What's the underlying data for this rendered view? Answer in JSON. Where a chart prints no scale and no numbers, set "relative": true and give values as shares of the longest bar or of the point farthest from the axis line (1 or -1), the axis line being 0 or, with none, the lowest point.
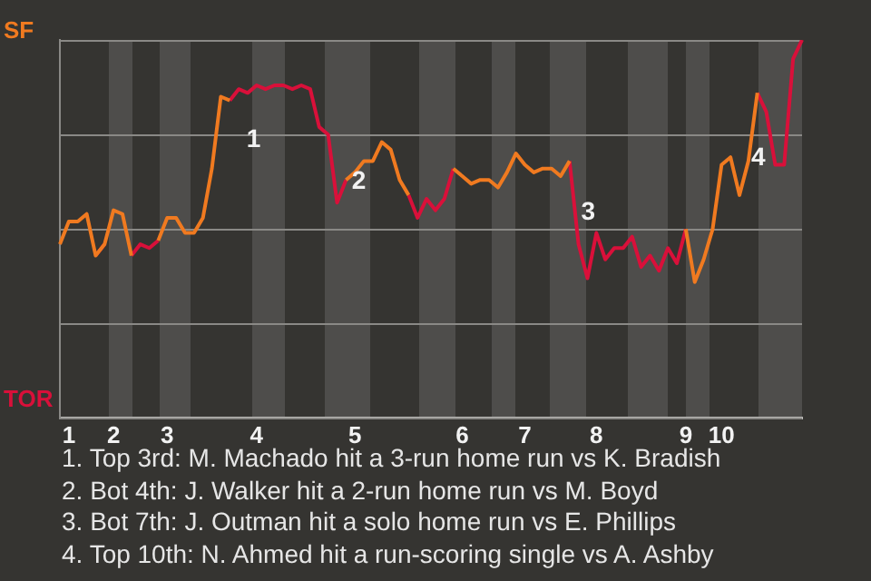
{
  "chart_data": {
    "type": "line",
    "relative": true,
    "categories": [
      null,
      "1",
      null,
      null,
      null,
      null,
      "2",
      null,
      null,
      null,
      null,
      null,
      "3",
      null,
      null,
      null,
      null,
      null,
      null,
      null,
      null,
      null,
      "4",
      null,
      null,
      null,
      null,
      null,
      null,
      null,
      null,
      null,
      null,
      "5",
      null,
      null,
      null,
      null,
      null,
      null,
      null,
      null,
      null,
      null,
      null,
      "6",
      null,
      null,
      null,
      null,
      null,
      null,
      "7",
      null,
      null,
      null,
      null,
      null,
      null,
      null,
      "8",
      null,
      null,
      null,
      null,
      null,
      null,
      null,
      null,
      null,
      "9",
      null,
      null,
      null,
      "10",
      null,
      null,
      null,
      null,
      null,
      null,
      null,
      null,
      null
    ],
    "series": [
      {
        "color": "#f07a20",
        "values": [
          0.46,
          0.52,
          0.52,
          0.54,
          0.43,
          0.46,
          0.55,
          0.54,
          0.43,
          null,
          null,
          0.47,
          0.53,
          0.53,
          0.49,
          0.49,
          0.53,
          0.66,
          0.85,
          0.84,
          null,
          null,
          null,
          null,
          null,
          null,
          null,
          null,
          null,
          null,
          null,
          null,
          0.63,
          0.65,
          0.68,
          0.68,
          0.73,
          0.71,
          0.63,
          0.59,
          null,
          null,
          null,
          null,
          0.66,
          0.64,
          0.62,
          0.63,
          0.63,
          0.61,
          0.65,
          0.7,
          0.67,
          0.65,
          0.66,
          0.66,
          0.64,
          0.68,
          null,
          null,
          null,
          null,
          null,
          null,
          null,
          null,
          null,
          null,
          null,
          null,
          0.5,
          0.36,
          0.42,
          0.5,
          0.67,
          0.69,
          0.59,
          0.68,
          0.86,
          null,
          null,
          null,
          null,
          null
        ]
      },
      {
        "color": "#d9103a",
        "values": [
          null,
          null,
          null,
          null,
          0.43,
          0.46,
          null,
          null,
          0.43,
          0.46,
          0.45,
          0.47,
          null,
          null,
          null,
          null,
          null,
          null,
          null,
          0.84,
          0.87,
          0.86,
          0.88,
          0.87,
          0.88,
          0.88,
          0.87,
          0.88,
          0.87,
          0.77,
          0.75,
          0.57,
          0.63,
          null,
          null,
          null,
          null,
          null,
          null,
          0.59,
          0.53,
          0.58,
          0.55,
          0.58,
          0.66,
          null,
          null,
          null,
          null,
          null,
          null,
          null,
          null,
          null,
          null,
          null,
          null,
          0.68,
          0.46,
          0.37,
          0.49,
          0.42,
          0.45,
          0.45,
          0.48,
          0.4,
          0.43,
          0.39,
          0.45,
          0.41,
          0.5,
          null,
          null,
          null,
          null,
          null,
          null,
          null,
          0.86,
          0.81,
          0.67,
          0.67,
          0.95,
          1.0
        ]
      }
    ],
    "grid": "y",
    "marker": "none",
    "line_style": "solid",
    "annotations": [
      "SF",
      "TOR",
      "1",
      "2",
      "3",
      "4",
      "1. Top 3rd: M. Machado hit a 3-run home run vs K. Bradish",
      "2. Bot 4th: J. Walker hit a 2-run home run vs M. Boyd",
      "3. Bot 7th: J. Outman hit a solo home run vs E. Phillips",
      "4. Top 10th: N. Ahmed hit a run-scoring single vs A. Ashby"
    ]
  }
}
